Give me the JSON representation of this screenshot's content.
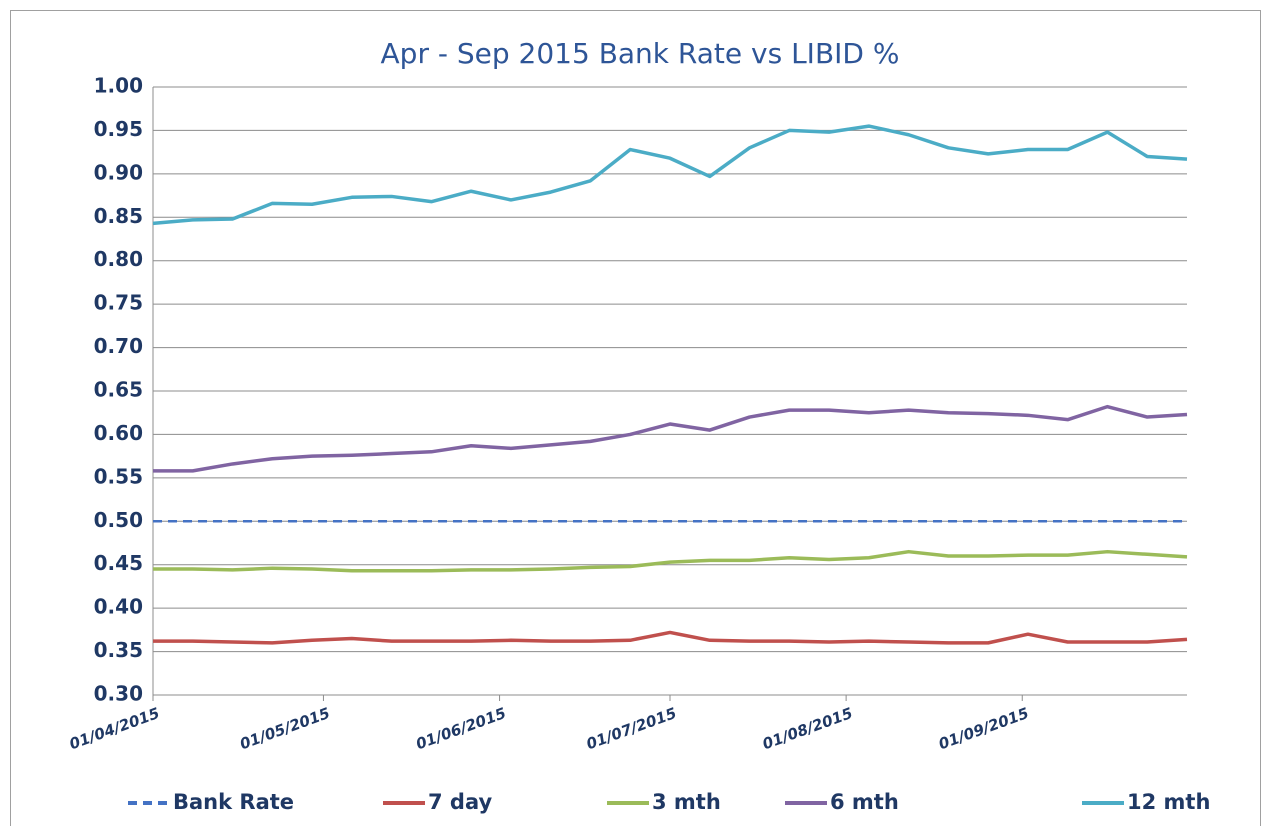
{
  "chart_data": {
    "type": "line",
    "title": "Apr - Sep 2015 Bank Rate vs LIBID %",
    "x": [
      "01/04/2015",
      "08/04/2015",
      "15/04/2015",
      "22/04/2015",
      "29/04/2015",
      "06/05/2015",
      "13/05/2015",
      "20/05/2015",
      "27/05/2015",
      "03/06/2015",
      "10/06/2015",
      "17/06/2015",
      "24/06/2015",
      "01/07/2015",
      "08/07/2015",
      "15/07/2015",
      "22/07/2015",
      "29/07/2015",
      "05/08/2015",
      "12/08/2015",
      "19/08/2015",
      "26/08/2015",
      "02/09/2015",
      "09/09/2015",
      "16/09/2015",
      "23/09/2015",
      "30/09/2015"
    ],
    "series": [
      {
        "name": "Bank Rate",
        "color": "#4472c4",
        "dashed": true,
        "values": [
          0.5,
          0.5,
          0.5,
          0.5,
          0.5,
          0.5,
          0.5,
          0.5,
          0.5,
          0.5,
          0.5,
          0.5,
          0.5,
          0.5,
          0.5,
          0.5,
          0.5,
          0.5,
          0.5,
          0.5,
          0.5,
          0.5,
          0.5,
          0.5,
          0.5,
          0.5,
          0.5
        ]
      },
      {
        "name": "7 day",
        "color": "#c0504d",
        "values": [
          0.362,
          0.362,
          0.361,
          0.36,
          0.363,
          0.365,
          0.362,
          0.362,
          0.362,
          0.363,
          0.362,
          0.362,
          0.363,
          0.372,
          0.363,
          0.362,
          0.362,
          0.361,
          0.362,
          0.361,
          0.36,
          0.36,
          0.37,
          0.361,
          0.361,
          0.361,
          0.364
        ]
      },
      {
        "name": "3 mth",
        "color": "#9bbb59",
        "values": [
          0.445,
          0.445,
          0.444,
          0.446,
          0.445,
          0.443,
          0.443,
          0.443,
          0.444,
          0.444,
          0.445,
          0.447,
          0.448,
          0.453,
          0.455,
          0.455,
          0.458,
          0.456,
          0.458,
          0.465,
          0.46,
          0.46,
          0.461,
          0.461,
          0.465,
          0.462,
          0.459
        ]
      },
      {
        "name": "6 mth",
        "color": "#8064a2",
        "values": [
          0.558,
          0.558,
          0.566,
          0.572,
          0.575,
          0.576,
          0.578,
          0.58,
          0.587,
          0.584,
          0.588,
          0.592,
          0.6,
          0.612,
          0.605,
          0.62,
          0.628,
          0.628,
          0.625,
          0.628,
          0.625,
          0.624,
          0.622,
          0.617,
          0.632,
          0.62,
          0.623
        ]
      },
      {
        "name": "12 mth",
        "color": "#4bacc6",
        "values": [
          0.843,
          0.847,
          0.848,
          0.866,
          0.865,
          0.873,
          0.874,
          0.868,
          0.88,
          0.87,
          0.879,
          0.892,
          0.928,
          0.918,
          0.897,
          0.93,
          0.95,
          0.948,
          0.955,
          0.945,
          0.93,
          0.923,
          0.928,
          0.928,
          0.948,
          0.92,
          0.917
        ]
      }
    ],
    "xlim": [
      "01/04/2015",
      "30/09/2015"
    ],
    "xticks": [
      "01/04/2015",
      "01/05/2015",
      "01/06/2015",
      "01/07/2015",
      "01/08/2015",
      "01/09/2015"
    ],
    "ylim": [
      0.3,
      1
    ],
    "yticks": [
      {
        "value": 0.3,
        "label": "0.30"
      },
      0.35,
      {
        "value": 0.4,
        "label": "0.40"
      },
      0.45,
      {
        "value": 0.5,
        "label": "0.50"
      },
      0.55,
      {
        "value": 0.6,
        "label": "0.60"
      },
      0.65,
      {
        "value": 0.7,
        "label": "0.70"
      },
      0.75,
      {
        "value": 0.8,
        "label": "0.80"
      },
      0.85,
      {
        "value": 0.9,
        "label": "0.90"
      },
      0.95,
      {
        "value": 1,
        "label": "1.00"
      }
    ],
    "grid": true,
    "legend": "bottom"
  }
}
